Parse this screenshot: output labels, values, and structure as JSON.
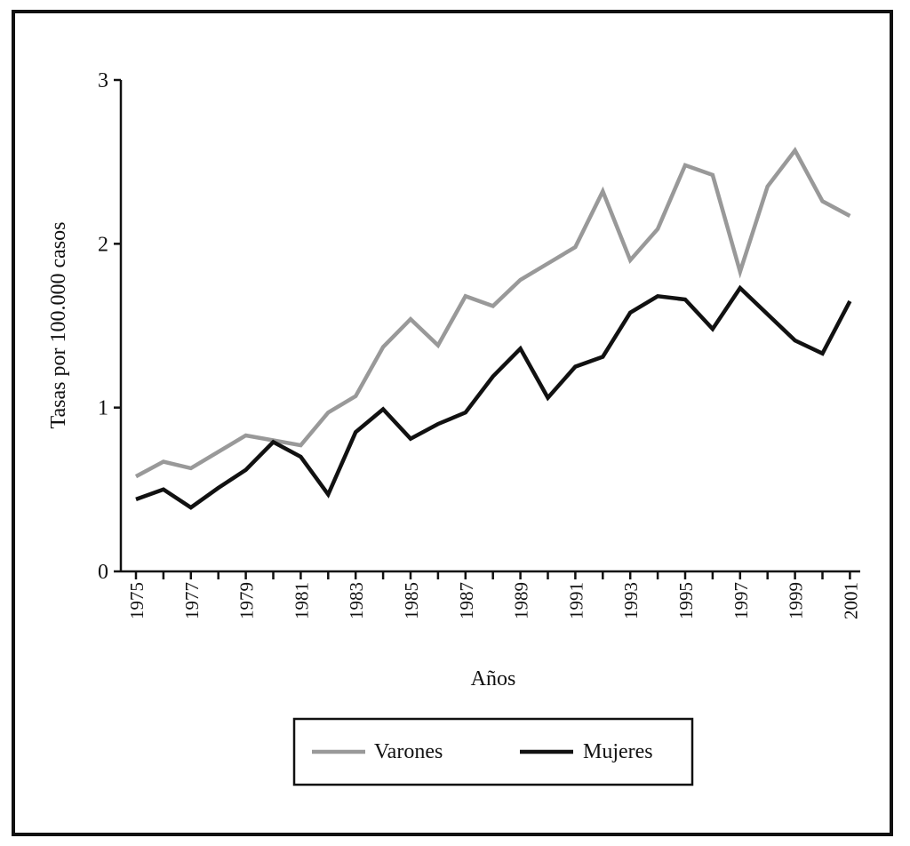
{
  "chart_data": {
    "type": "line",
    "title": "",
    "xlabel": "Años",
    "ylabel": "Tasas por 100.000 casos",
    "ylim": [
      0,
      3
    ],
    "yticks": [
      "0",
      "1",
      "2",
      "3"
    ],
    "x": [
      1975,
      1976,
      1977,
      1978,
      1979,
      1980,
      1981,
      1982,
      1983,
      1984,
      1985,
      1986,
      1987,
      1988,
      1989,
      1990,
      1991,
      1992,
      1993,
      1994,
      1995,
      1996,
      1997,
      1998,
      1999,
      2000,
      2001
    ],
    "xtick_labels": [
      "1975",
      "1977",
      "1979",
      "1981",
      "1983",
      "1985",
      "1987",
      "1989",
      "1991",
      "1993",
      "1995",
      "1997",
      "1999",
      "2001"
    ],
    "grid": false,
    "legend_position": "bottom",
    "series": [
      {
        "name": "Varones",
        "color": "#999999",
        "values": [
          0.58,
          0.67,
          0.63,
          0.73,
          0.83,
          0.8,
          0.77,
          0.97,
          1.07,
          1.37,
          1.54,
          1.38,
          1.68,
          1.62,
          1.78,
          1.88,
          1.98,
          2.32,
          1.9,
          2.09,
          2.48,
          2.42,
          1.83,
          2.35,
          2.57,
          2.26,
          2.17
        ]
      },
      {
        "name": "Mujeres",
        "color": "#111111",
        "values": [
          0.44,
          0.5,
          0.39,
          0.51,
          0.62,
          0.79,
          0.7,
          0.47,
          0.85,
          0.99,
          0.81,
          0.9,
          0.97,
          1.19,
          1.36,
          1.06,
          1.25,
          1.31,
          1.58,
          1.68,
          1.66,
          1.48,
          1.73,
          1.57,
          1.41,
          1.33,
          1.65
        ]
      }
    ]
  }
}
